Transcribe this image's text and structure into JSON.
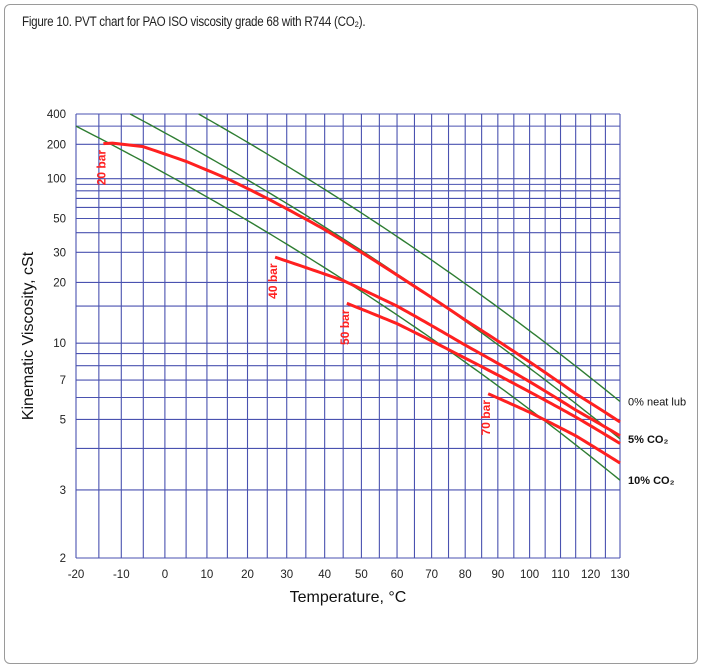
{
  "title": "Figure 10. PVT chart for PAO ISO viscosity grade 68 with R744 (CO₂).",
  "chart_data": {
    "type": "line",
    "title": "Figure 10. PVT chart for PAO ISO viscosity grade 68 with R744 (CO₂).",
    "xlabel": "Temperature, °C",
    "ylabel": "Kinematic Viscosity, cSt",
    "x_scale": "log absolute temperature (Walther/ASTM)",
    "y_scale": "log-log viscosity (Walther/ASTM)",
    "xlim": [
      -20,
      130
    ],
    "ylim": [
      2,
      400
    ],
    "grid": true,
    "x_ticks": [
      -20,
      -10,
      0,
      10,
      20,
      30,
      40,
      50,
      60,
      70,
      80,
      90,
      100,
      110,
      120,
      130
    ],
    "x_minor_grid": [
      -15,
      -5,
      5,
      15,
      25,
      35,
      45,
      55,
      65,
      75,
      85,
      95,
      105,
      115,
      125
    ],
    "y_ticks": [
      400,
      200,
      100,
      50,
      30,
      20,
      10,
      7,
      5,
      3,
      2
    ],
    "y_grid": [
      400,
      300,
      200,
      100,
      90,
      80,
      70,
      60,
      50,
      40,
      30,
      20,
      15,
      10,
      9,
      8,
      7,
      6,
      5,
      4,
      3,
      2
    ],
    "colors": {
      "grid": "#4a52b0",
      "concentration": "#2e7d32",
      "pressure": "#ff2020",
      "frame": "#9a9a9a"
    },
    "concentration_series": [
      {
        "name": "0% neat lub",
        "points": [
          [
            8,
            400
          ],
          [
            130,
            5.8
          ]
        ]
      },
      {
        "name": "5% CO₂",
        "points": [
          [
            -8,
            400
          ],
          [
            130,
            4.3
          ]
        ]
      },
      {
        "name": "10% CO₂",
        "points": [
          [
            -20,
            300
          ],
          [
            130,
            3.2
          ]
        ]
      }
    ],
    "pressure_series": [
      {
        "name": "20 bar",
        "points": [
          [
            -14,
            203
          ],
          [
            -12,
            205
          ],
          [
            -5,
            190
          ],
          [
            5,
            140
          ],
          [
            15,
            100
          ],
          [
            25,
            70
          ],
          [
            40,
            42
          ],
          [
            60,
            22
          ],
          [
            80,
            12.8
          ],
          [
            100,
            8.3
          ],
          [
            115,
            6.2
          ],
          [
            130,
            4.9
          ]
        ]
      },
      {
        "name": "40 bar",
        "points": [
          [
            27,
            28
          ],
          [
            45,
            20.5
          ],
          [
            60,
            15
          ],
          [
            80,
            9.8
          ],
          [
            100,
            6.9
          ],
          [
            115,
            5.4
          ],
          [
            130,
            4.4
          ]
        ]
      },
      {
        "name": "50 bar",
        "points": [
          [
            46,
            15.5
          ],
          [
            60,
            12.3
          ],
          [
            80,
            8.6
          ],
          [
            100,
            6.3
          ],
          [
            115,
            5.1
          ],
          [
            130,
            4.15
          ]
        ]
      },
      {
        "name": "70 bar",
        "points": [
          [
            87,
            6.2
          ],
          [
            100,
            5.3
          ],
          [
            115,
            4.4
          ],
          [
            130,
            3.6
          ]
        ]
      }
    ]
  }
}
